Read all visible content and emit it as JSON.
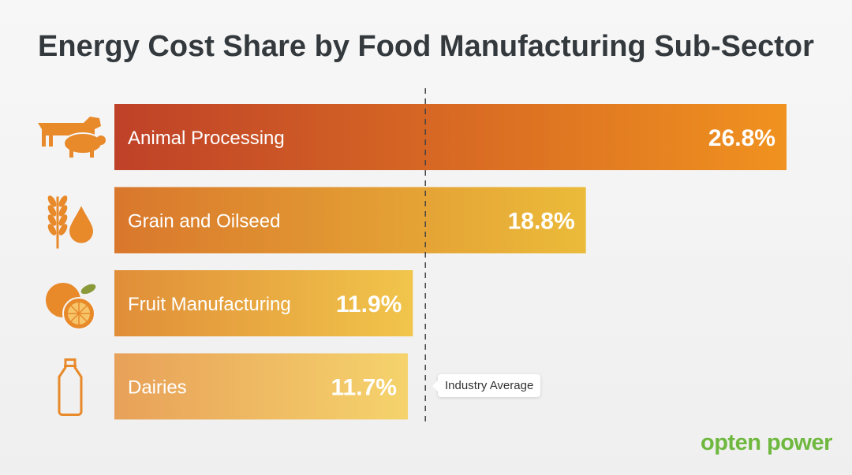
{
  "chart_data": {
    "type": "bar",
    "orientation": "horizontal",
    "title": "Energy Cost Share by Food Manufacturing Sub-Sector",
    "categories": [
      "Animal Processing",
      "Grain and Oilseed",
      "Fruit Manufacturing",
      "Dairies"
    ],
    "values": [
      26.8,
      18.8,
      11.9,
      11.7
    ],
    "data_labels": [
      "26.8%",
      "18.8%",
      "11.9%",
      "11.7%"
    ],
    "icons": [
      "cow-pig-icon",
      "wheat-oil-drop-icon",
      "orange-fruit-icon",
      "milk-bottle-icon"
    ],
    "reference_line": {
      "label": "Industry Average",
      "value": 12.4,
      "style": "dashed"
    },
    "xlim": [
      0,
      26.8
    ],
    "grid": false,
    "colors": [
      [
        "#bf4128",
        "#f0921f"
      ],
      [
        "#d9772c",
        "#ebbb3a"
      ],
      [
        "#e08e38",
        "#f1c54b"
      ],
      [
        "#e8a159",
        "#f5d36c"
      ]
    ],
    "icon_color": "#e8892a"
  },
  "logo": "opten power",
  "logo_color": "#6fb83f"
}
